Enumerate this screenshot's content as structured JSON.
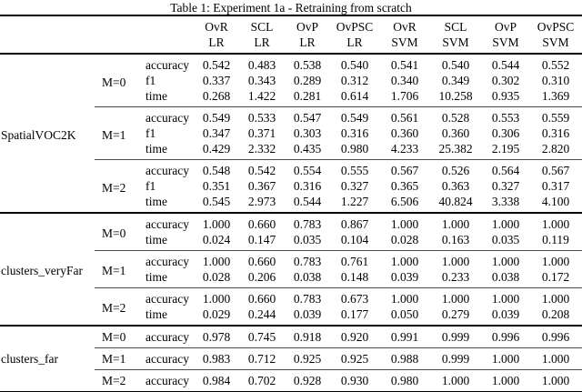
{
  "caption": "Table 1: Experiment 1a - Retraining from scratch",
  "colors": {
    "text": "#000000",
    "background": "#ffffff",
    "thick_rule": "#000000",
    "thin_rule": "#4a4a4a"
  },
  "table": {
    "columns": [
      {
        "method": "OvR",
        "model": "LR"
      },
      {
        "method": "SCL",
        "model": "LR"
      },
      {
        "method": "OvP",
        "model": "LR"
      },
      {
        "method": "OvPSC",
        "model": "LR"
      },
      {
        "method": "OvR",
        "model": "SVM"
      },
      {
        "method": "SCL",
        "model": "SVM"
      },
      {
        "method": "OvP",
        "model": "SVM"
      },
      {
        "method": "OvPSC",
        "model": "SVM"
      }
    ],
    "groups": [
      {
        "name": "SpatialVOC2K",
        "blocks": [
          {
            "m": "M=0",
            "rows": [
              {
                "metric": "accuracy",
                "values": [
                  "0.542",
                  "0.483",
                  "0.538",
                  "0.540",
                  "0.541",
                  "0.540",
                  "0.544",
                  "0.552"
                ]
              },
              {
                "metric": "f1",
                "values": [
                  "0.337",
                  "0.343",
                  "0.289",
                  "0.312",
                  "0.340",
                  "0.349",
                  "0.302",
                  "0.310"
                ]
              },
              {
                "metric": "time",
                "values": [
                  "0.268",
                  "1.422",
                  "0.281",
                  "0.614",
                  "1.706",
                  "10.258",
                  "0.935",
                  "1.369"
                ]
              }
            ]
          },
          {
            "m": "M=1",
            "rows": [
              {
                "metric": "accuracy",
                "values": [
                  "0.549",
                  "0.533",
                  "0.547",
                  "0.549",
                  "0.561",
                  "0.528",
                  "0.553",
                  "0.559"
                ]
              },
              {
                "metric": "f1",
                "values": [
                  "0.347",
                  "0.371",
                  "0.303",
                  "0.316",
                  "0.360",
                  "0.360",
                  "0.306",
                  "0.316"
                ]
              },
              {
                "metric": "time",
                "values": [
                  "0.429",
                  "2.332",
                  "0.435",
                  "0.980",
                  "4.233",
                  "25.382",
                  "2.195",
                  "2.820"
                ]
              }
            ]
          },
          {
            "m": "M=2",
            "rows": [
              {
                "metric": "accuracy",
                "values": [
                  "0.548",
                  "0.542",
                  "0.554",
                  "0.555",
                  "0.567",
                  "0.526",
                  "0.564",
                  "0.567"
                ]
              },
              {
                "metric": "f1",
                "values": [
                  "0.351",
                  "0.367",
                  "0.316",
                  "0.327",
                  "0.365",
                  "0.363",
                  "0.327",
                  "0.317"
                ]
              },
              {
                "metric": "time",
                "values": [
                  "0.545",
                  "2.973",
                  "0.544",
                  "1.227",
                  "6.506",
                  "40.824",
                  "3.338",
                  "4.100"
                ]
              }
            ]
          }
        ]
      },
      {
        "name": "clusters_veryFar",
        "blocks": [
          {
            "m": "M=0",
            "rows": [
              {
                "metric": "accuracy",
                "values": [
                  "1.000",
                  "0.660",
                  "0.783",
                  "0.867",
                  "1.000",
                  "1.000",
                  "1.000",
                  "1.000"
                ]
              },
              {
                "metric": "time",
                "values": [
                  "0.024",
                  "0.147",
                  "0.035",
                  "0.104",
                  "0.028",
                  "0.163",
                  "0.035",
                  "0.119"
                ]
              }
            ]
          },
          {
            "m": "M=1",
            "rows": [
              {
                "metric": "accuracy",
                "values": [
                  "1.000",
                  "0.660",
                  "0.783",
                  "0.761",
                  "1.000",
                  "1.000",
                  "1.000",
                  "1.000"
                ]
              },
              {
                "metric": "time",
                "values": [
                  "0.028",
                  "0.206",
                  "0.038",
                  "0.148",
                  "0.039",
                  "0.233",
                  "0.038",
                  "0.172"
                ]
              }
            ]
          },
          {
            "m": "M=2",
            "rows": [
              {
                "metric": "accuracy",
                "values": [
                  "1.000",
                  "0.660",
                  "0.783",
                  "0.673",
                  "1.000",
                  "1.000",
                  "1.000",
                  "1.000"
                ]
              },
              {
                "metric": "time",
                "values": [
                  "0.029",
                  "0.244",
                  "0.039",
                  "0.177",
                  "0.050",
                  "0.279",
                  "0.039",
                  "0.208"
                ]
              }
            ]
          }
        ]
      },
      {
        "name": "clusters_far",
        "blocks": [
          {
            "m": "M=0",
            "rows": [
              {
                "metric": "accuracy",
                "values": [
                  "0.978",
                  "0.745",
                  "0.918",
                  "0.920",
                  "0.991",
                  "0.999",
                  "0.996",
                  "0.996"
                ]
              }
            ]
          },
          {
            "m": "M=1",
            "rows": [
              {
                "metric": "accuracy",
                "values": [
                  "0.983",
                  "0.712",
                  "0.925",
                  "0.925",
                  "0.988",
                  "0.999",
                  "1.000",
                  "1.000"
                ]
              }
            ]
          },
          {
            "m": "M=2",
            "rows": [
              {
                "metric": "accuracy",
                "values": [
                  "0.984",
                  "0.702",
                  "0.928",
                  "0.930",
                  "0.980",
                  "1.000",
                  "1.000",
                  "1.000"
                ]
              }
            ]
          }
        ]
      }
    ]
  }
}
